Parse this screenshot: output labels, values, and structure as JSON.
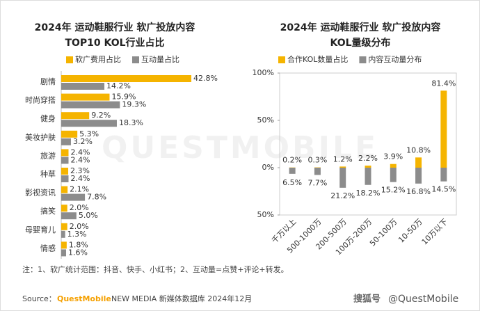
{
  "chart_data": [
    {
      "type": "hbar",
      "title": [
        "2024年 运动鞋服行业 软广投放内容",
        "TOP10 KOL行业占比"
      ],
      "categories": [
        "剧情",
        "时尚穿搭",
        "健身",
        "美妆护肤",
        "旅游",
        "种草",
        "影视资讯",
        "搞笑",
        "母婴育儿",
        "情感"
      ],
      "series": [
        {
          "name": "软广费用占比",
          "color": "#f5b400",
          "values": [
            42.8,
            15.9,
            9.2,
            5.3,
            2.4,
            2.3,
            2.1,
            2.0,
            2.0,
            1.8
          ],
          "value_labels": [
            "42.8%",
            "15.9%",
            "9.2%",
            "5.3%",
            "2.4%",
            "2.3%",
            "2.1%",
            "2.0%",
            "2.0%",
            "1.8%"
          ]
        },
        {
          "name": "互动量占比",
          "color": "#8c8c8c",
          "values": [
            14.2,
            19.3,
            18.3,
            3.2,
            2.4,
            2.4,
            7.8,
            5.0,
            1.3,
            1.6
          ],
          "value_labels": [
            "14.2%",
            "19.3%",
            "18.3%",
            "3.2%",
            "2.4%",
            "2.4%",
            "7.8%",
            "5.0%",
            "1.3%",
            "1.6%"
          ]
        }
      ]
    },
    {
      "type": "bar",
      "title": [
        "2024年 运动鞋服行业 软广投放内容",
        "KOL量级分布"
      ],
      "categories": [
        "千万以上",
        "500-1000万",
        "200-500万",
        "100万-200万",
        "50-100万",
        "10-50万",
        "10万以下"
      ],
      "ylim": [
        -50,
        100
      ],
      "yticks": [
        {
          "value": 100,
          "label": "100%"
        },
        {
          "value": 50,
          "label": "50%"
        },
        {
          "value": 0,
          "label": "0%"
        },
        {
          "value": -50,
          "label": "50%"
        }
      ],
      "series": [
        {
          "name": "合作KOL数量占比",
          "color": "#f5b400",
          "values": [
            0.2,
            0.3,
            1.2,
            2.2,
            3.9,
            10.8,
            81.4
          ],
          "value_labels": [
            "0.2%",
            "0.3%",
            "1.2%",
            "2.2%",
            "3.9%",
            "10.8%",
            "81.4%"
          ]
        },
        {
          "name": "内容互动量分布",
          "color": "#8c8c8c",
          "values": [
            -6.5,
            -7.7,
            -21.2,
            -18.2,
            -15.2,
            -16.8,
            -14.5
          ],
          "value_labels": [
            "6.5%",
            "7.7%",
            "21.2%",
            "18.2%",
            "15.2%",
            "16.8%",
            "14.5%"
          ]
        }
      ]
    }
  ],
  "watermark": "QUESTMOBILE",
  "footnote": "注：1、软广统计范围：抖音、快手、小红书；2、互动量=点赞+评论+转发。",
  "source": {
    "prefix": "Source：",
    "brand": "QuestMobile",
    "rest": "NEW MEDIA 新媒体数据库 2024年12月"
  },
  "credit": {
    "platform": "搜狐号",
    "handle": "@QuestMobile"
  }
}
